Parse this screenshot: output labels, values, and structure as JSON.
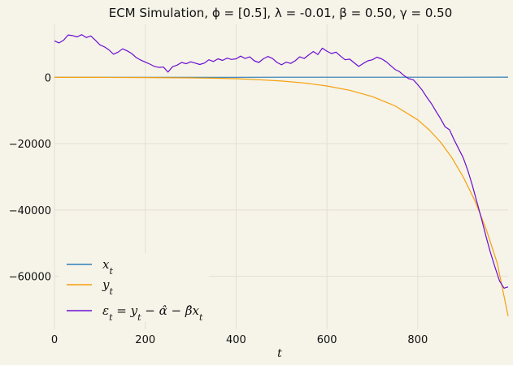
{
  "chart_data": {
    "type": "line",
    "title": "ECM Simulation, ϕ = [0.5], λ = -0.01, β = 0.50, γ = 0.50",
    "xlabel": "t",
    "ylabel": "",
    "xlim": [
      0,
      999
    ],
    "ylim": [
      -76000,
      16000
    ],
    "x_ticks": [
      0,
      200,
      400,
      600,
      800
    ],
    "x_tick_labels": [
      "0",
      "200",
      "400",
      "600",
      "800"
    ],
    "y_ticks": [
      0,
      -20000,
      -40000,
      -60000
    ],
    "y_tick_labels": [
      "0",
      "−20000",
      "−40000",
      "−60000"
    ],
    "grid": true,
    "legend_position": "lower-left",
    "series": [
      {
        "name": "x_t",
        "legend_label": "x_t",
        "color": "#2f7fb8",
        "x": [
          0,
          100,
          200,
          300,
          400,
          500,
          600,
          700,
          800,
          900,
          999
        ],
        "y": [
          0,
          10,
          20,
          25,
          30,
          35,
          40,
          45,
          50,
          55,
          60
        ]
      },
      {
        "name": "y_t",
        "legend_label": "y_t",
        "color": "#f5a00e",
        "x": [
          0,
          100,
          200,
          300,
          350,
          400,
          450,
          500,
          550,
          600,
          650,
          700,
          750,
          800,
          825,
          850,
          875,
          900,
          925,
          950,
          975,
          999
        ],
        "y": [
          0,
          0,
          -50,
          -150,
          -250,
          -400,
          -700,
          -1100,
          -1700,
          -2600,
          -3900,
          -5800,
          -8600,
          -12800,
          -15800,
          -19500,
          -24200,
          -30000,
          -37000,
          -45500,
          -56000,
          -72000
        ]
      },
      {
        "name": "eps_t",
        "legend_label": "ε_t = y_t − α̂ − β̂ x_t",
        "color": "#6a0fd0",
        "x": [
          0,
          10,
          20,
          30,
          40,
          50,
          60,
          70,
          80,
          90,
          100,
          110,
          120,
          130,
          140,
          150,
          160,
          170,
          180,
          190,
          200,
          210,
          220,
          230,
          240,
          250,
          260,
          270,
          280,
          290,
          300,
          310,
          320,
          330,
          340,
          350,
          360,
          370,
          380,
          390,
          400,
          410,
          420,
          430,
          440,
          450,
          460,
          470,
          480,
          490,
          500,
          510,
          520,
          530,
          540,
          550,
          560,
          570,
          580,
          590,
          600,
          610,
          620,
          630,
          640,
          650,
          660,
          670,
          680,
          690,
          700,
          710,
          720,
          730,
          740,
          750,
          760,
          770,
          780,
          790,
          800,
          810,
          820,
          830,
          840,
          850,
          860,
          870,
          880,
          890,
          900,
          910,
          920,
          930,
          940,
          950,
          960,
          970,
          980,
          990,
          999
        ],
        "y": [
          11000,
          10400,
          11200,
          12800,
          12600,
          12200,
          12900,
          12000,
          12500,
          11200,
          9800,
          9200,
          8300,
          7000,
          7600,
          8600,
          8000,
          7200,
          6000,
          5200,
          4600,
          4000,
          3300,
          3000,
          3100,
          1600,
          3200,
          3700,
          4500,
          4100,
          4700,
          4300,
          3900,
          4300,
          5300,
          4800,
          5600,
          5100,
          5800,
          5400,
          5600,
          6400,
          5700,
          6200,
          5000,
          4500,
          5600,
          6300,
          5700,
          4500,
          3800,
          4600,
          4200,
          5000,
          6200,
          5700,
          6800,
          7800,
          6900,
          8800,
          7900,
          7200,
          7600,
          6400,
          5300,
          5500,
          4400,
          3300,
          4200,
          5000,
          5300,
          6100,
          5600,
          4800,
          3600,
          2400,
          1700,
          500,
          -400,
          -700,
          -2200,
          -3900,
          -6000,
          -7900,
          -10200,
          -12400,
          -14900,
          -15800,
          -18800,
          -21500,
          -24200,
          -28000,
          -32500,
          -37500,
          -42400,
          -47800,
          -52800,
          -57200,
          -61400,
          -63600,
          -63200
        ]
      }
    ]
  }
}
